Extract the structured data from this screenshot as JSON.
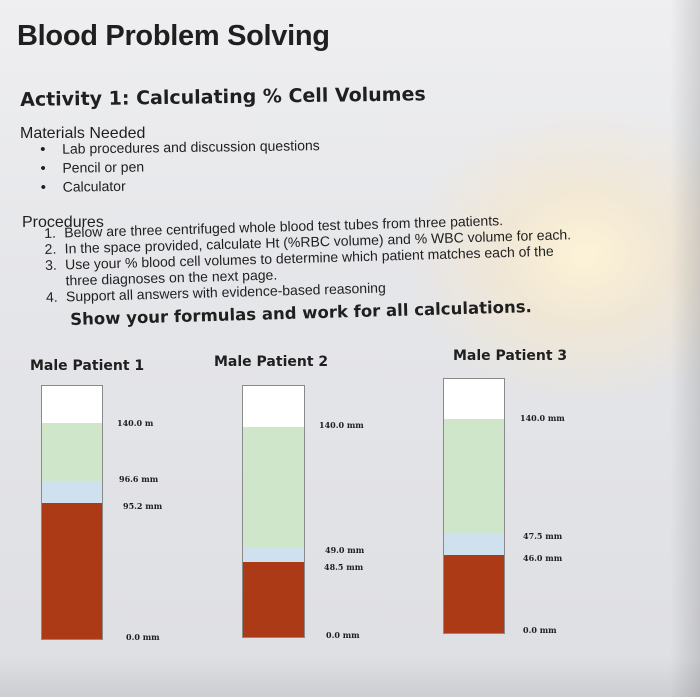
{
  "page": {
    "title": "Blood Problem Solving",
    "activity_title": "Activity 1: Calculating % Cell Volumes",
    "materials_heading": "Materials Needed",
    "materials": [
      "Lab procedures and discussion questions",
      "Pencil or pen",
      "Calculator"
    ],
    "procedures_heading": "Procedures",
    "procedures": [
      {
        "num": "1.",
        "text": "Below are three centrifuged whole blood test tubes from three patients."
      },
      {
        "num": "2.",
        "text": "In the space provided, calculate Ht (%RBC volume) and % WBC volume for each."
      },
      {
        "num": "3.",
        "text": "Use your % blood cell volumes to determine which patient matches each of the",
        "cont": "three diagnoses on the next page."
      },
      {
        "num": "4.",
        "text": "Support all answers with evidence-based reasoning"
      }
    ],
    "emphasis": "Show your formulas and work for all calculations."
  },
  "patients": [
    {
      "name": "Male Patient 1",
      "labels": {
        "top": "140.0 m",
        "buffy_top": "96.6 mm",
        "rbc_top": "95.2 mm",
        "bottom": "0.0 mm"
      },
      "levels_mm": {
        "total": 140.0,
        "buffy_top": 96.6,
        "rbc_top": 95.2
      }
    },
    {
      "name": "Male Patient 2",
      "labels": {
        "top": "140.0 mm",
        "buffy_top": "49.0 mm",
        "rbc_top": "48.5 mm",
        "bottom": "0.0 mm"
      },
      "levels_mm": {
        "total": 140.0,
        "buffy_top": 49.0,
        "rbc_top": 48.5
      }
    },
    {
      "name": "Male Patient 3",
      "labels": {
        "top": "140.0 mm",
        "buffy_top": "47.5 mm",
        "rbc_top": "46.0 mm",
        "bottom": "0.0 mm"
      },
      "levels_mm": {
        "total": 140.0,
        "buffy_top": 47.5,
        "rbc_top": 46.0
      }
    }
  ],
  "colors": {
    "plasma": "#ffffff",
    "serum": "#cfe6cb",
    "buffy_coat": "#cfe0ee",
    "red_cells": "#ad3a16"
  }
}
